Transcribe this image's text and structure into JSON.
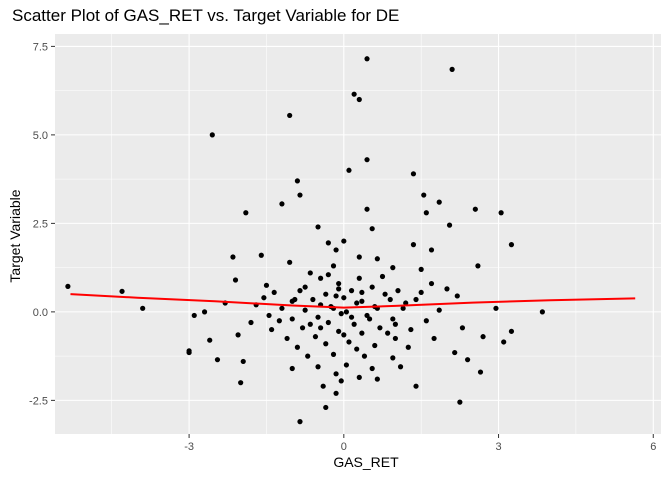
{
  "chart_data": {
    "type": "scatter",
    "title": "Scatter Plot of GAS_RET vs. Target Variable for DE",
    "xlabel": "GAS_RET",
    "ylabel": "Target Variable",
    "xlim": [
      -5.6,
      6.15
    ],
    "ylim": [
      -3.45,
      7.85
    ],
    "x_ticks": [
      -3,
      0,
      3,
      6
    ],
    "x_minor": [
      -4.5,
      -1.5,
      1.5,
      4.5
    ],
    "y_ticks": [
      -2.5,
      0.0,
      2.5,
      5.0,
      7.5
    ],
    "y_tick_labels": [
      "-2.5",
      "0.0",
      "2.5",
      "5.0",
      "7.5"
    ],
    "y_minor": [
      -1.25,
      1.25,
      3.75,
      6.25
    ],
    "grid": true,
    "background": "#ebebeb",
    "grid_color": "#ffffff",
    "point_color": "#000000",
    "trend_color": "#ff0000",
    "trend_line": {
      "x": [
        -5.3,
        -4.0,
        -2.5,
        -1.0,
        0.0,
        1.0,
        2.5,
        4.0,
        5.65
      ],
      "y": [
        0.5,
        0.4,
        0.3,
        0.18,
        0.12,
        0.17,
        0.26,
        0.33,
        0.38
      ]
    },
    "points": [
      [
        0.45,
        7.15
      ],
      [
        2.1,
        6.85
      ],
      [
        0.2,
        6.15
      ],
      [
        0.3,
        6.0
      ],
      [
        -1.05,
        5.55
      ],
      [
        -2.55,
        5.0
      ],
      [
        0.45,
        4.3
      ],
      [
        0.1,
        4.0
      ],
      [
        1.35,
        3.9
      ],
      [
        -0.9,
        3.7
      ],
      [
        -0.85,
        3.3
      ],
      [
        1.55,
        3.3
      ],
      [
        3.05,
        2.8
      ],
      [
        -1.2,
        3.05
      ],
      [
        1.85,
        3.1
      ],
      [
        2.55,
        2.9
      ],
      [
        -1.9,
        2.8
      ],
      [
        0.45,
        2.9
      ],
      [
        1.6,
        2.8
      ],
      [
        2.05,
        2.45
      ],
      [
        0.55,
        2.35
      ],
      [
        -0.5,
        2.4
      ],
      [
        3.25,
        1.9
      ],
      [
        1.35,
        1.9
      ],
      [
        0.0,
        2.0
      ],
      [
        -0.3,
        1.95
      ],
      [
        -0.15,
        1.75
      ],
      [
        1.7,
        1.75
      ],
      [
        0.65,
        1.5
      ],
      [
        -2.15,
        1.55
      ],
      [
        -1.6,
        1.6
      ],
      [
        0.3,
        1.55
      ],
      [
        -1.05,
        1.4
      ],
      [
        0.95,
        1.25
      ],
      [
        2.6,
        1.3
      ],
      [
        1.5,
        1.2
      ],
      [
        -0.2,
        1.3
      ],
      [
        -0.65,
        1.1
      ],
      [
        -2.1,
        0.9
      ],
      [
        -0.45,
        0.95
      ],
      [
        0.75,
        1.0
      ],
      [
        0.3,
        0.95
      ],
      [
        1.7,
        0.8
      ],
      [
        -5.35,
        0.72
      ],
      [
        -4.3,
        0.58
      ],
      [
        -1.35,
        0.55
      ],
      [
        -0.75,
        0.7
      ],
      [
        0.55,
        0.7
      ],
      [
        -0.1,
        0.65
      ],
      [
        1.05,
        0.6
      ],
      [
        0.35,
        0.55
      ],
      [
        -0.35,
        0.5
      ],
      [
        2.2,
        0.45
      ],
      [
        -1.55,
        0.4
      ],
      [
        -0.95,
        0.35
      ],
      [
        0.0,
        0.4
      ],
      [
        0.9,
        0.35
      ],
      [
        1.4,
        0.35
      ],
      [
        -0.45,
        0.2
      ],
      [
        0.25,
        0.25
      ],
      [
        -0.2,
        0.1
      ],
      [
        0.6,
        0.15
      ],
      [
        -0.75,
        0.05
      ],
      [
        1.15,
        0.1
      ],
      [
        -1.2,
        0.1
      ],
      [
        0.05,
        0.0
      ],
      [
        -0.05,
        -0.05
      ],
      [
        0.45,
        -0.1
      ],
      [
        -0.5,
        -0.15
      ],
      [
        0.95,
        -0.2
      ],
      [
        -1.0,
        -0.2
      ],
      [
        1.6,
        -0.25
      ],
      [
        -3.9,
        0.1
      ],
      [
        -2.7,
        0.0
      ],
      [
        -2.9,
        -0.1
      ],
      [
        3.85,
        0.0
      ],
      [
        2.95,
        0.1
      ],
      [
        -0.3,
        -0.3
      ],
      [
        0.2,
        -0.35
      ],
      [
        0.7,
        -0.45
      ],
      [
        -0.8,
        -0.45
      ],
      [
        1.3,
        -0.5
      ],
      [
        -1.4,
        -0.5
      ],
      [
        2.3,
        -0.45
      ],
      [
        -0.1,
        -0.55
      ],
      [
        0.35,
        -0.6
      ],
      [
        -0.55,
        -0.7
      ],
      [
        1.0,
        -0.75
      ],
      [
        -1.1,
        -0.75
      ],
      [
        3.25,
        -0.55
      ],
      [
        2.7,
        -0.7
      ],
      [
        -2.05,
        -0.65
      ],
      [
        -2.6,
        -0.8
      ],
      [
        0.1,
        -0.85
      ],
      [
        -0.35,
        -0.9
      ],
      [
        0.6,
        -0.95
      ],
      [
        -0.9,
        -1.0
      ],
      [
        1.25,
        -1.0
      ],
      [
        3.1,
        -0.85
      ],
      [
        -3.0,
        -1.1
      ],
      [
        -3.0,
        -1.15
      ],
      [
        2.15,
        -1.15
      ],
      [
        -0.2,
        -1.2
      ],
      [
        0.4,
        -1.25
      ],
      [
        -0.7,
        -1.25
      ],
      [
        0.95,
        -1.3
      ],
      [
        -1.95,
        -1.4
      ],
      [
        -2.45,
        -1.35
      ],
      [
        2.4,
        -1.35
      ],
      [
        0.05,
        -1.5
      ],
      [
        -0.5,
        -1.55
      ],
      [
        0.55,
        -1.6
      ],
      [
        1.1,
        -1.55
      ],
      [
        -1.0,
        -1.6
      ],
      [
        -0.15,
        -1.75
      ],
      [
        0.3,
        -1.85
      ],
      [
        2.65,
        -1.7
      ],
      [
        -2.0,
        -2.0
      ],
      [
        -0.05,
        -1.95
      ],
      [
        -0.4,
        -2.1
      ],
      [
        1.4,
        -2.1
      ],
      [
        -0.15,
        -2.3
      ],
      [
        2.25,
        -2.55
      ],
      [
        -0.35,
        -2.7
      ],
      [
        -0.85,
        -3.1
      ],
      [
        0.65,
        -1.9
      ],
      [
        -0.6,
        0.35
      ],
      [
        0.15,
        0.6
      ],
      [
        0.8,
        0.5
      ],
      [
        -1.25,
        -0.25
      ],
      [
        1.85,
        0.05
      ],
      [
        -1.7,
        0.2
      ],
      [
        0.5,
        -0.2
      ],
      [
        -0.25,
        0.15
      ],
      [
        0.35,
        0.3
      ],
      [
        -0.65,
        -0.35
      ],
      [
        1.2,
        0.25
      ],
      [
        -1.45,
        -0.1
      ],
      [
        0.85,
        -0.6
      ],
      [
        -0.85,
        0.6
      ],
      [
        0.0,
        -0.65
      ],
      [
        -0.1,
        0.8
      ],
      [
        1.75,
        -0.75
      ],
      [
        -1.8,
        -0.3
      ],
      [
        2.0,
        0.65
      ],
      [
        -2.3,
        0.25
      ],
      [
        0.25,
        -1.05
      ],
      [
        -0.3,
        1.05
      ],
      [
        1.5,
        0.55
      ],
      [
        -1.5,
        0.75
      ],
      [
        0.65,
        0.1
      ],
      [
        -0.45,
        -0.45
      ],
      [
        0.15,
        -0.15
      ],
      [
        -0.15,
        0.45
      ],
      [
        1.0,
        -0.35
      ],
      [
        -1.0,
        0.3
      ]
    ]
  }
}
